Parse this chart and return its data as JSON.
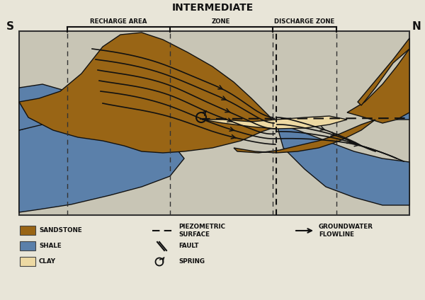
{
  "title": "INTERMEDIATE",
  "bg_color": "#e8e5d8",
  "diagram_bg": "#c8c5b5",
  "sandstone_color": "#996515",
  "shale_color": "#5B80AA",
  "clay_color": "#EDD9A3",
  "ec": "#111111",
  "text_color": "#111111",
  "label_S": "S",
  "label_N": "N",
  "zone_recharge": "RECHARGE AREA",
  "zone_intermediate": "ZONE",
  "zone_discharge": "DISCHARGE ZONE",
  "legend_sandstone": "SANDSTONE",
  "legend_shale": "SHALE",
  "legend_clay": "CLAY",
  "legend_piezo": "PIEZOMETRIC\nSURFACE",
  "legend_fault": "FAULT",
  "legend_spring": "SPRING",
  "legend_gw": "GROUNDWATER\nFLOWLINE"
}
